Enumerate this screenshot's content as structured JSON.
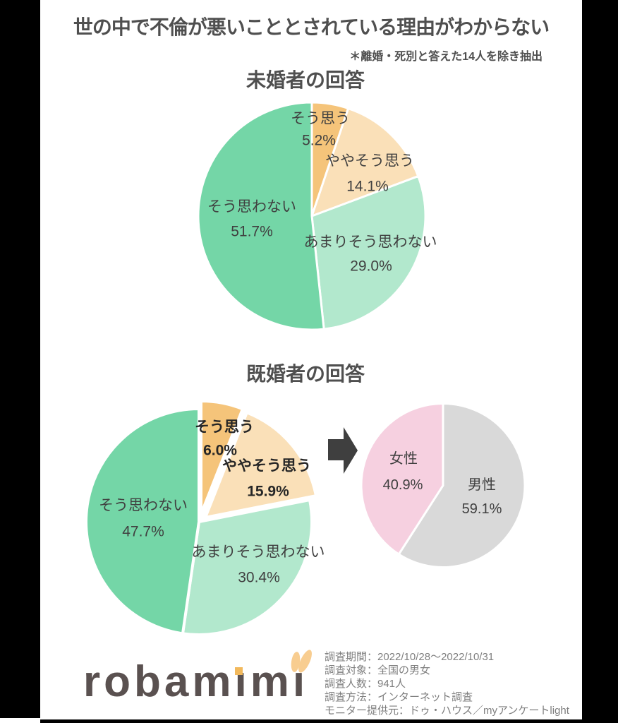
{
  "page": {
    "title": "世の中で不倫が悪いこととされている理由がわからない",
    "note": "＊離婚・死別と答えた14人を除き抽出"
  },
  "chart_data": [
    {
      "type": "pie",
      "title": "未婚者の回答",
      "labels": [
        "そう思う",
        "ややそう思う",
        "あまりそう思わない",
        "そう思わない"
      ],
      "values": [
        5.2,
        14.1,
        29.0,
        51.7
      ],
      "colors": [
        "#f5c47a",
        "#fae0b8",
        "#b2e8cd",
        "#74d6a7"
      ],
      "start_angle_deg": 0,
      "direction": "clockwise",
      "label_position": "inside",
      "legend": "none"
    },
    {
      "type": "pie",
      "title": "既婚者の回答",
      "labels": [
        "そう思う",
        "ややそう思う",
        "あまりそう思わない",
        "そう思わない"
      ],
      "values": [
        6.0,
        15.9,
        30.4,
        47.7
      ],
      "colors": [
        "#f5c47a",
        "#fae0b8",
        "#b2e8cd",
        "#74d6a7"
      ],
      "exploded_slices": [
        "そう思う",
        "ややそう思う"
      ],
      "start_angle_deg": 0,
      "direction": "clockwise",
      "label_position": "inside",
      "legend": "none"
    },
    {
      "type": "pie",
      "title": "",
      "labels": [
        "男性",
        "女性"
      ],
      "values": [
        59.1,
        40.9
      ],
      "colors": [
        "#d9d9d9",
        "#f6d0e0"
      ],
      "start_angle_deg": 0,
      "direction": "clockwise",
      "label_position": "inside",
      "legend": "none"
    }
  ],
  "footer": {
    "logo_text": "robamimi",
    "logo_display": {
      "p1": "robam",
      "i1": "ı",
      "p2": "m",
      "i2": "ı"
    },
    "survey_info": [
      "調査期間：2022/10/28～2022/10/31",
      "調査対象：全国の男女",
      "調査人数：941人",
      "調査方法：インターネット調査",
      "モニター提供元：ドゥ・ハウス／myアンケートlight"
    ]
  },
  "colors": {
    "agree": "#f5c47a",
    "somewhat_agree": "#fae0b8",
    "somewhat_disagree": "#b2e8cd",
    "disagree": "#74d6a7",
    "male": "#d9d9d9",
    "female": "#f6d0e0",
    "arrow": "#3f3f3f",
    "text_dark": "#404040",
    "text_gray": "#7f7f7f",
    "logo": "#5a5150",
    "logo_accent": "#f2b95c"
  }
}
